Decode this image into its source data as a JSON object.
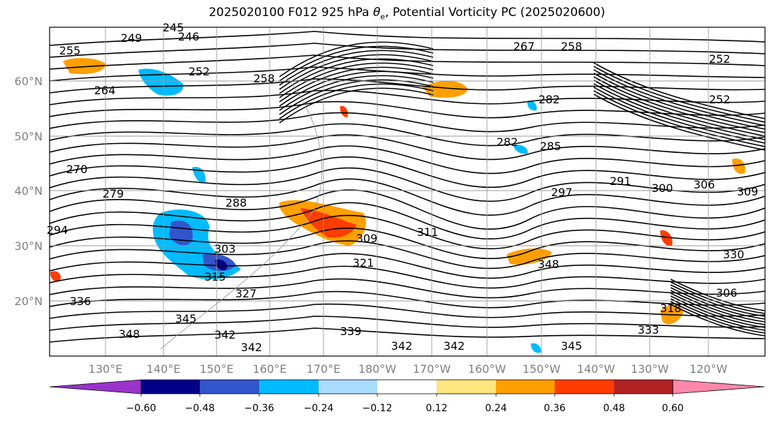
{
  "title": {
    "prefix": "2025020100 F012 925 hPa ",
    "theta": "θ",
    "sub": "e",
    "suffix": ", Potential Vorticity PC (2025020600)"
  },
  "lat_labels": [
    "60°N",
    "50°N",
    "40°N",
    "30°N",
    "20°N"
  ],
  "lon_labels": [
    "130°E",
    "140°E",
    "150°E",
    "160°E",
    "170°E",
    "180°W",
    "170°W",
    "160°W",
    "150°W",
    "140°W",
    "130°W",
    "120°W"
  ],
  "colorbar": {
    "colors": [
      "#9933cc",
      "#000088",
      "#3355cc",
      "#00bbff",
      "#aadcff",
      "#ffffff",
      "#ffe680",
      "#ff9f00",
      "#ff3d00",
      "#b22222",
      "#ff88aa"
    ],
    "tick_labels": [
      "−0.60",
      "−0.48",
      "−0.36",
      "−0.24",
      "−0.12",
      "0.12",
      "0.24",
      "0.36",
      "0.48",
      "0.60"
    ]
  },
  "contour_labels": [
    "255",
    "249",
    "245",
    "246",
    "252",
    "258",
    "264",
    "270",
    "279",
    "294",
    "288",
    "303",
    "315",
    "327",
    "336",
    "348",
    "345",
    "342",
    "339",
    "321",
    "309",
    "311",
    "282",
    "285",
    "297",
    "291",
    "300",
    "306",
    "282",
    "267",
    "258",
    "252",
    "252",
    "318",
    "333",
    "342",
    "342",
    "345",
    "342",
    "348",
    "330",
    "306",
    "309"
  ]
}
